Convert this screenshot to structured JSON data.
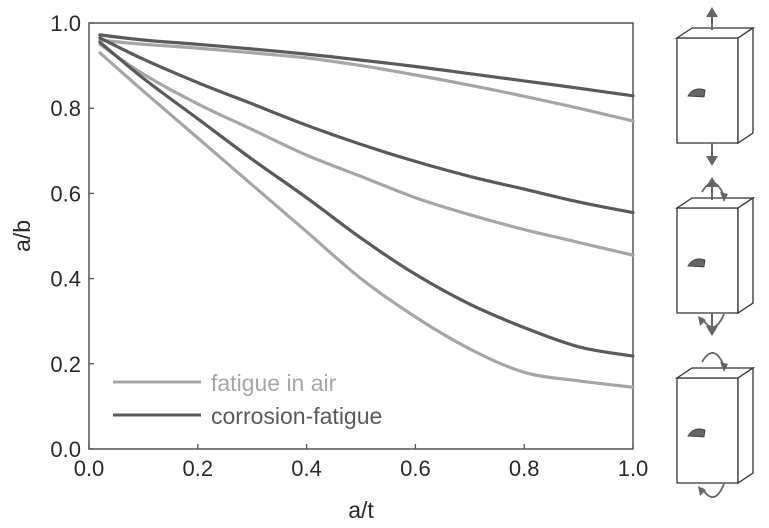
{
  "chart_data": {
    "type": "line",
    "xlabel": "a/t",
    "ylabel": "a/b",
    "xlim": [
      0.0,
      1.0
    ],
    "ylim": [
      0.0,
      1.0
    ],
    "xticks": [
      "0.0",
      "0.2",
      "0.4",
      "0.6",
      "0.8",
      "1.0"
    ],
    "yticks": [
      "0.0",
      "0.2",
      "0.4",
      "0.6",
      "0.8",
      "1.0"
    ],
    "grid": false,
    "legend_position": "bottom-left",
    "legend": [
      {
        "label": "fatigue in air",
        "color": "#a6a6a6"
      },
      {
        "label": "corrosion-fatigue",
        "color": "#5a5a5a"
      }
    ],
    "series": [
      {
        "group": "fatigue in air",
        "load_case": "tension",
        "color": "#a6a6a6",
        "x": [
          0.02,
          0.1,
          0.2,
          0.3,
          0.4,
          0.5,
          0.6,
          0.7,
          0.8,
          0.9,
          1.0
        ],
        "y": [
          0.96,
          0.95,
          0.941,
          0.93,
          0.918,
          0.9,
          0.878,
          0.854,
          0.828,
          0.8,
          0.77
        ]
      },
      {
        "group": "corrosion-fatigue",
        "load_case": "tension",
        "color": "#5a5a5a",
        "x": [
          0.02,
          0.1,
          0.2,
          0.3,
          0.4,
          0.5,
          0.6,
          0.7,
          0.8,
          0.9,
          1.0
        ],
        "y": [
          0.972,
          0.96,
          0.95,
          0.939,
          0.927,
          0.913,
          0.898,
          0.881,
          0.864,
          0.847,
          0.829
        ]
      },
      {
        "group": "fatigue in air",
        "load_case": "tension and bending",
        "color": "#a6a6a6",
        "x": [
          0.02,
          0.1,
          0.2,
          0.3,
          0.4,
          0.5,
          0.6,
          0.7,
          0.8,
          0.9,
          1.0
        ],
        "y": [
          0.95,
          0.88,
          0.81,
          0.75,
          0.69,
          0.64,
          0.59,
          0.55,
          0.515,
          0.485,
          0.455
        ]
      },
      {
        "group": "corrosion-fatigue",
        "load_case": "tension and bending",
        "color": "#5a5a5a",
        "x": [
          0.02,
          0.1,
          0.2,
          0.3,
          0.4,
          0.5,
          0.6,
          0.7,
          0.8,
          0.9,
          1.0
        ],
        "y": [
          0.965,
          0.915,
          0.86,
          0.81,
          0.76,
          0.715,
          0.675,
          0.64,
          0.61,
          0.58,
          0.555
        ]
      },
      {
        "group": "fatigue in air",
        "load_case": "bending",
        "color": "#a6a6a6",
        "x": [
          0.02,
          0.1,
          0.2,
          0.3,
          0.4,
          0.5,
          0.6,
          0.7,
          0.8,
          0.9,
          1.0
        ],
        "y": [
          0.93,
          0.84,
          0.73,
          0.62,
          0.51,
          0.4,
          0.31,
          0.235,
          0.18,
          0.16,
          0.145
        ]
      },
      {
        "group": "corrosion-fatigue",
        "load_case": "bending",
        "color": "#5a5a5a",
        "x": [
          0.02,
          0.1,
          0.2,
          0.3,
          0.4,
          0.5,
          0.6,
          0.7,
          0.8,
          0.9,
          1.0
        ],
        "y": [
          0.955,
          0.87,
          0.775,
          0.68,
          0.59,
          0.495,
          0.41,
          0.34,
          0.285,
          0.24,
          0.218
        ]
      }
    ],
    "load_case_icons": [
      "tension",
      "tension and bending",
      "bending"
    ]
  },
  "style": {
    "axis_color": "#555555",
    "text_color": "#2a2a2a",
    "icon_color": "#666666"
  }
}
